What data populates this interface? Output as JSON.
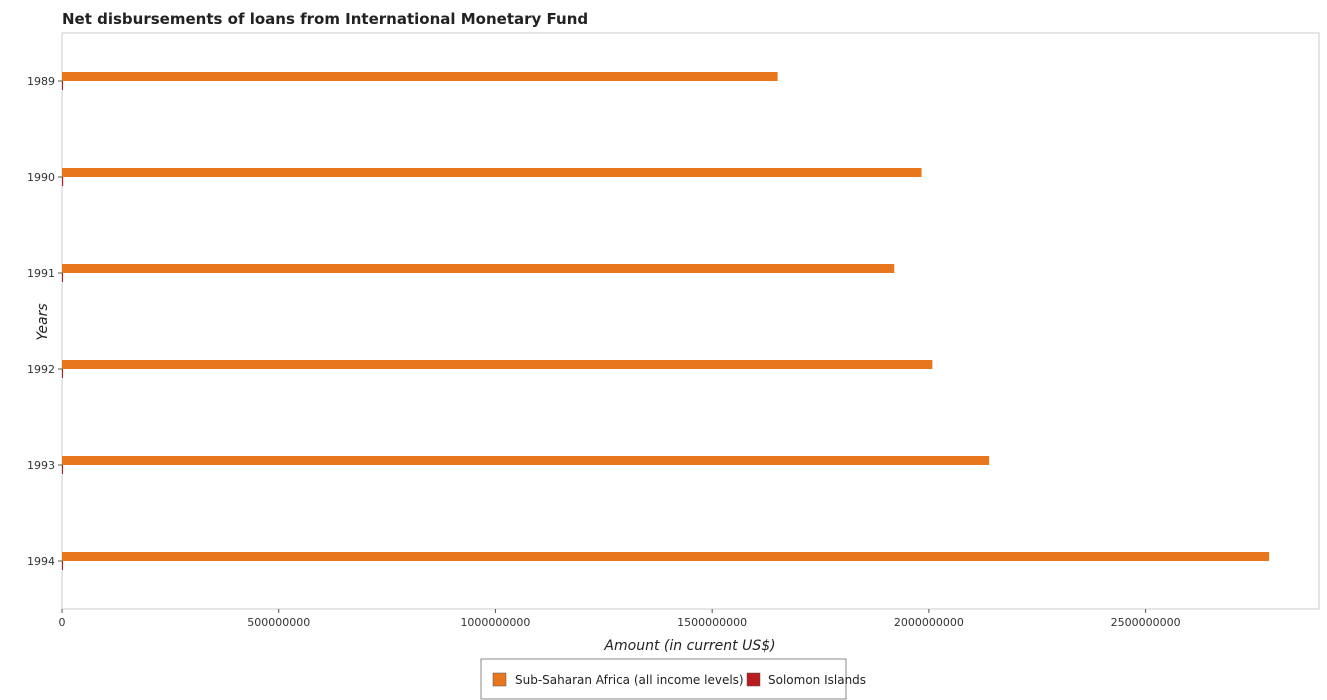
{
  "chart_data": {
    "type": "bar",
    "orientation": "horizontal",
    "title": "Net disbursements of loans from International Monetary Fund",
    "xlabel": "Amount (in current US$)",
    "ylabel": "Years",
    "categories": [
      "1989",
      "1990",
      "1991",
      "1992",
      "1993",
      "1994"
    ],
    "series": [
      {
        "name": "Sub-Saharan Africa (all income levels)",
        "color": "#e8761c",
        "values": [
          1651000000,
          1983000000,
          1920000000,
          2008000000,
          2139000000,
          2785000000
        ]
      },
      {
        "name": "Solomon Islands",
        "color": "#b81c1c",
        "values": [
          2100000,
          2600000,
          1900000,
          600000,
          1100000,
          1600000
        ]
      }
    ],
    "xlim": [
      0,
      2900000000
    ],
    "xticks": [
      0,
      500000000,
      1000000000,
      1500000000,
      2000000000,
      2500000000
    ],
    "xtick_labels": [
      "0",
      "500000000",
      "1000000000",
      "1500000000",
      "2000000000",
      "2500000000"
    ],
    "legend_position": "bottom-center",
    "grid": false
  }
}
